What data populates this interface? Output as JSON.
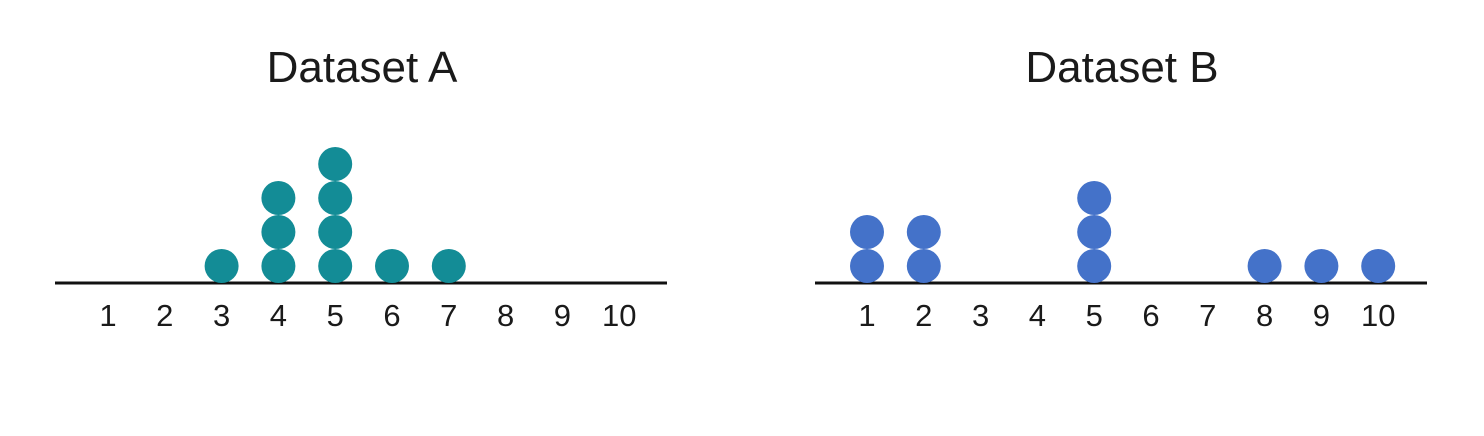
{
  "chart_data": [
    {
      "type": "scatter",
      "subtype": "dot-plot",
      "title": "Dataset A",
      "xlabel": "",
      "ylabel": "",
      "x_ticks": [
        "1",
        "2",
        "3",
        "4",
        "5",
        "6",
        "7",
        "8",
        "9",
        "10"
      ],
      "xlim": [
        1,
        10
      ],
      "grid": false,
      "color": "#138c96",
      "counts": [
        {
          "x": 1,
          "count": 0
        },
        {
          "x": 2,
          "count": 0
        },
        {
          "x": 3,
          "count": 1
        },
        {
          "x": 4,
          "count": 3
        },
        {
          "x": 5,
          "count": 4
        },
        {
          "x": 6,
          "count": 1
        },
        {
          "x": 7,
          "count": 1
        },
        {
          "x": 8,
          "count": 0
        },
        {
          "x": 9,
          "count": 0
        },
        {
          "x": 10,
          "count": 0
        }
      ]
    },
    {
      "type": "scatter",
      "subtype": "dot-plot",
      "title": "Dataset B",
      "xlabel": "",
      "ylabel": "",
      "x_ticks": [
        "1",
        "2",
        "3",
        "4",
        "5",
        "6",
        "7",
        "8",
        "9",
        "10"
      ],
      "xlim": [
        1,
        10
      ],
      "grid": false,
      "color": "#4472c9",
      "counts": [
        {
          "x": 1,
          "count": 2
        },
        {
          "x": 2,
          "count": 2
        },
        {
          "x": 3,
          "count": 0
        },
        {
          "x": 4,
          "count": 0
        },
        {
          "x": 5,
          "count": 3
        },
        {
          "x": 6,
          "count": 0
        },
        {
          "x": 7,
          "count": 0
        },
        {
          "x": 8,
          "count": 1
        },
        {
          "x": 9,
          "count": 1
        },
        {
          "x": 10,
          "count": 1
        }
      ]
    }
  ]
}
